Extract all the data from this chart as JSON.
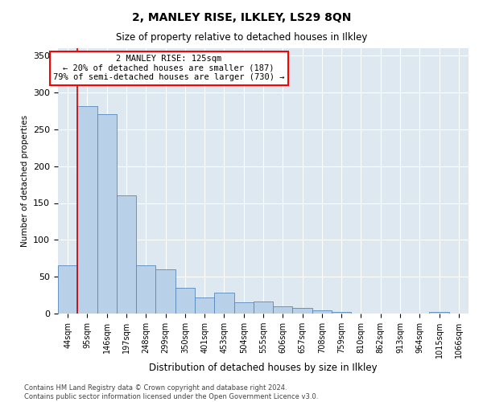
{
  "title": "2, MANLEY RISE, ILKLEY, LS29 8QN",
  "subtitle": "Size of property relative to detached houses in Ilkley",
  "xlabel": "Distribution of detached houses by size in Ilkley",
  "ylabel": "Number of detached properties",
  "footnote1": "Contains HM Land Registry data © Crown copyright and database right 2024.",
  "footnote2": "Contains public sector information licensed under the Open Government Licence v3.0.",
  "annotation_line1": "2 MANLEY RISE: 125sqm",
  "annotation_line2": "← 20% of detached houses are smaller (187)",
  "annotation_line3": "79% of semi-detached houses are larger (730) →",
  "bar_color": "#b8d0e8",
  "bar_edge_color": "#5588bb",
  "vline_color": "#cc0000",
  "vline_x": 0.5,
  "background_color": "#dde8f0",
  "grid_color": "#ffffff",
  "categories": [
    "44sqm",
    "95sqm",
    "146sqm",
    "197sqm",
    "248sqm",
    "299sqm",
    "350sqm",
    "401sqm",
    "453sqm",
    "504sqm",
    "555sqm",
    "606sqm",
    "657sqm",
    "708sqm",
    "759sqm",
    "810sqm",
    "862sqm",
    "913sqm",
    "964sqm",
    "1015sqm",
    "1066sqm"
  ],
  "values": [
    65,
    282,
    270,
    160,
    65,
    60,
    35,
    22,
    28,
    15,
    16,
    10,
    8,
    4,
    2,
    0,
    0,
    0,
    0,
    2,
    0
  ],
  "ylim": [
    0,
    360
  ],
  "yticks": [
    0,
    50,
    100,
    150,
    200,
    250,
    300,
    350
  ]
}
